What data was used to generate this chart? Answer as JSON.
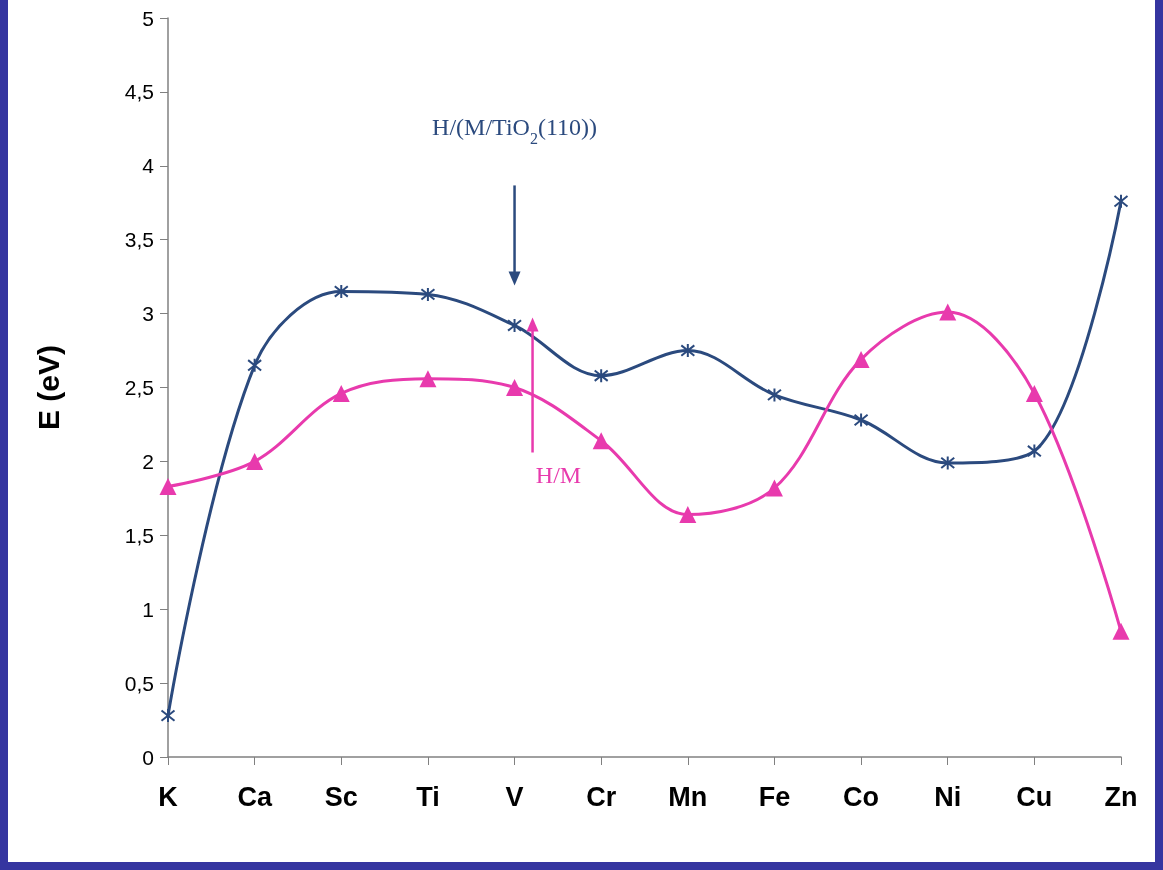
{
  "chart_data": {
    "type": "line",
    "ylabel": "E (eV)",
    "categories": [
      "K",
      "Ca",
      "Sc",
      "Ti",
      "V",
      "Cr",
      "Mn",
      "Fe",
      "Co",
      "Ni",
      "Cu",
      "Zn"
    ],
    "series": [
      {
        "name": "H/(M/TiO$_{2}$(110))",
        "color": "#2b4a7e",
        "marker": "cross",
        "values": [
          0.28,
          2.65,
          3.15,
          3.13,
          2.92,
          2.58,
          2.75,
          2.45,
          2.28,
          1.99,
          2.07,
          3.76
        ]
      },
      {
        "name": "H/M",
        "color": "#e83aad",
        "marker": "triangle",
        "values": [
          1.83,
          2.0,
          2.46,
          2.56,
          2.5,
          2.14,
          1.64,
          1.82,
          2.69,
          3.01,
          2.46,
          0.85
        ]
      }
    ],
    "ylim": [
      0,
      5
    ],
    "yticks": [
      0,
      {
        "value": 0.5,
        "label": "0,5"
      },
      1,
      {
        "value": 1.5,
        "label": "1,5"
      },
      2,
      {
        "value": 2.5,
        "label": "2,5"
      },
      3,
      {
        "value": 3.5,
        "label": "3,5"
      },
      4,
      {
        "value": 4.5,
        "label": "4,5"
      },
      5
    ],
    "grid": false,
    "legend": false,
    "line_style": "solid"
  }
}
